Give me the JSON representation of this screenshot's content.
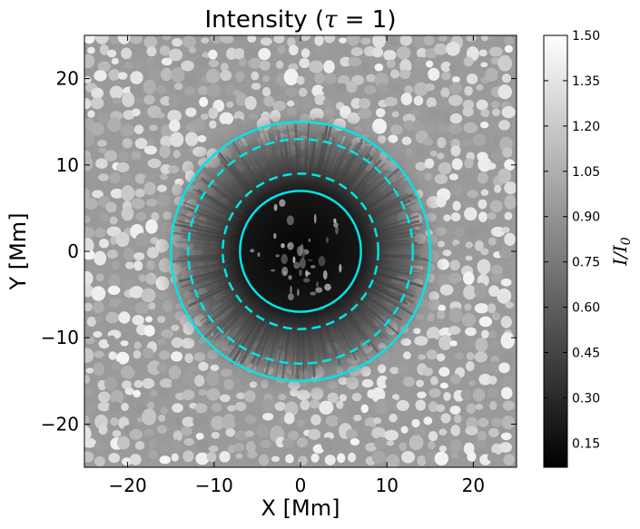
{
  "chart_data": {
    "type": "heatmap",
    "title": "Intensity (τ = 1)",
    "xlabel": "X [Mm]",
    "ylabel": "Y [Mm]",
    "xlim": [
      -25,
      25
    ],
    "ylim": [
      -25,
      25
    ],
    "xticks": [
      -20,
      -10,
      0,
      10,
      20
    ],
    "yticks": [
      -20,
      -10,
      0,
      10,
      20
    ],
    "xtick_labels": [
      "−20",
      "−10",
      "0",
      "10",
      "20"
    ],
    "ytick_labels": [
      "−20",
      "−10",
      "0",
      "10",
      "20"
    ],
    "colormap": "gray",
    "colorbar": {
      "label": "I/I₀",
      "range": [
        0.07,
        1.5
      ],
      "ticks": [
        0.15,
        0.3,
        0.45,
        0.6,
        0.75,
        0.9,
        1.05,
        1.2,
        1.35,
        1.5
      ],
      "tick_labels": [
        "0.15",
        "0.30",
        "0.45",
        "0.60",
        "0.75",
        "0.90",
        "1.05",
        "1.20",
        "1.35",
        "1.50"
      ]
    },
    "overlay_circles": [
      {
        "center": [
          0,
          0
        ],
        "radius": 7,
        "style": "solid",
        "color": "#00e5e5"
      },
      {
        "center": [
          0,
          0
        ],
        "radius": 9,
        "style": "dashed",
        "color": "#00e5e5"
      },
      {
        "center": [
          0,
          0
        ],
        "radius": 13,
        "style": "dashed",
        "color": "#00e5e5"
      },
      {
        "center": [
          0,
          0
        ],
        "radius": 15,
        "style": "solid",
        "color": "#00e5e5"
      }
    ],
    "regions": {
      "umbra_radius": 7,
      "penumbra_outer_radius": 14,
      "umbra_intensity": 0.15,
      "penumbra_intensity": 0.4,
      "granulation_intensity": 1.0
    }
  }
}
